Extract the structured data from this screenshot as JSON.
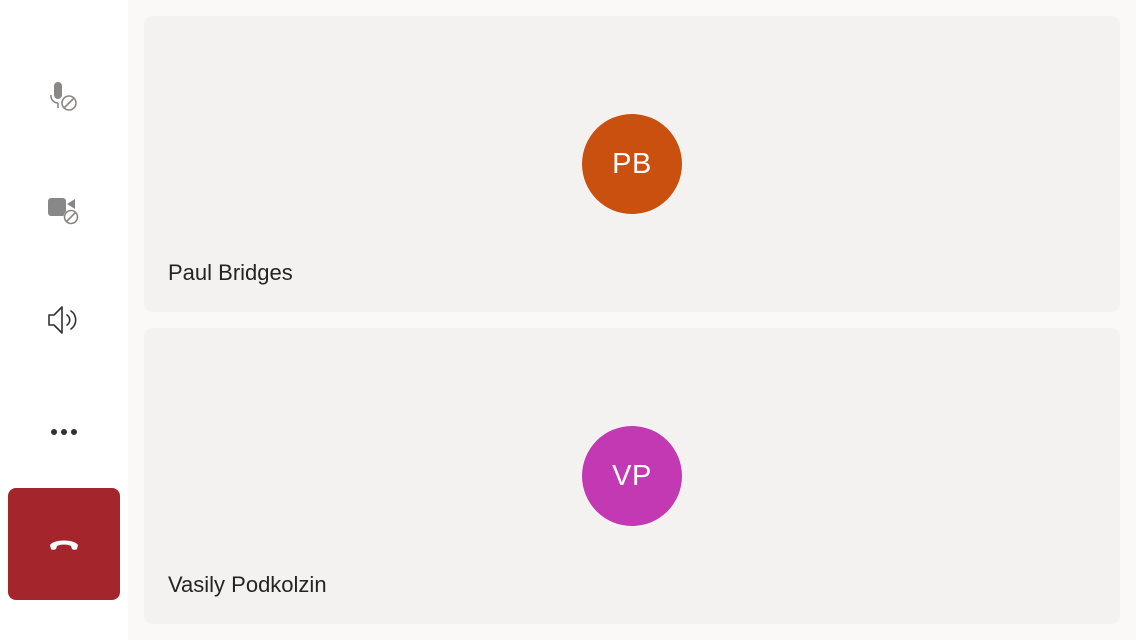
{
  "toolbar": {
    "buttons": [
      {
        "id": "mic",
        "icon": "mic-off-icon",
        "label": "Mute"
      },
      {
        "id": "camera",
        "icon": "camera-off-icon",
        "label": "Camera"
      },
      {
        "id": "speaker",
        "icon": "speaker-icon",
        "label": "Speaker"
      },
      {
        "id": "more",
        "icon": "more-icon",
        "label": "More"
      },
      {
        "id": "hangup",
        "icon": "hang-up-icon",
        "label": "Leave"
      }
    ],
    "hangup_color": "#a4262c"
  },
  "participants": [
    {
      "initials": "PB",
      "name": "Paul Bridges",
      "avatar_color": "#ca5010"
    },
    {
      "initials": "VP",
      "name": "Vasily Podkolzin",
      "avatar_color": "#c239b3"
    }
  ]
}
